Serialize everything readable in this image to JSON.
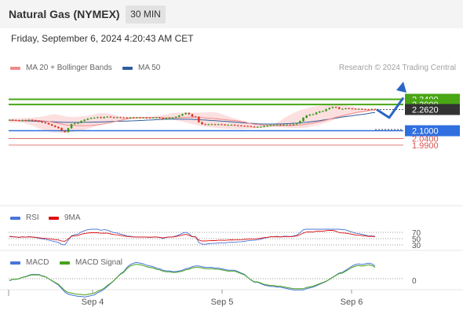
{
  "header": {
    "title": "Natural Gas (NYMEX)",
    "timeframe": "30 MIN"
  },
  "datetime": "Friday, September 6, 2024 4:20:43 AM CET",
  "legend": {
    "ma20_label": "MA 20 + Bollinger Bands",
    "ma50_label": "MA 50",
    "ma20_color": "#f08a8a",
    "ma50_color": "#2f5d9e"
  },
  "research": "Research © 2024 Trading Central",
  "levels": {
    "r2": "2.3400",
    "r1": "2.3000",
    "last": "2.2620",
    "pivot": "2.1000",
    "s1": "2.0400",
    "s2": "1.9900",
    "resistance_color": "#4aa615",
    "pivot_color": "#2f6fe0",
    "support_color": "#d9534f",
    "last_color": "#333333"
  },
  "rsi_panel": {
    "rsi_label": "RSI",
    "ma9_label": "9MA",
    "rsi_color": "#4a74d9",
    "ma9_color": "#e01010",
    "ticks": [
      "70",
      "50",
      "30"
    ]
  },
  "macd_panel": {
    "macd_label": "MACD",
    "signal_label": "MACD Signal",
    "macd_color": "#4a74d9",
    "signal_color": "#44a21a",
    "tick": "0"
  },
  "xaxis": {
    "labels": [
      "Sep 4",
      "Sep 5",
      "Sep 6"
    ]
  },
  "chart_data": {
    "type": "candlestick",
    "title": "Natural Gas (NYMEX)",
    "timeframe": "30 MIN",
    "x_labels": [
      "Sep 4",
      "Sep 5",
      "Sep 6"
    ],
    "ylim": [
      1.97,
      2.36
    ],
    "close": [
      2.183,
      2.181,
      2.179,
      2.175,
      2.181,
      2.178,
      2.183,
      2.18,
      2.176,
      2.169,
      2.163,
      2.158,
      2.149,
      2.139,
      2.129,
      2.12,
      2.099,
      2.09,
      2.119,
      2.15,
      2.156,
      2.16,
      2.175,
      2.184,
      2.192,
      2.197,
      2.199,
      2.203,
      2.197,
      2.205,
      2.207,
      2.203,
      2.199,
      2.203,
      2.201,
      2.2,
      2.197,
      2.201,
      2.199,
      2.201,
      2.2,
      2.2,
      2.199,
      2.198,
      2.2,
      2.201,
      2.197,
      2.188,
      2.196,
      2.2,
      2.2,
      2.206,
      2.216,
      2.227,
      2.236,
      2.226,
      2.208,
      2.206,
      2.165,
      2.15,
      2.147,
      2.149,
      2.149,
      2.147,
      2.149,
      2.147,
      2.143,
      2.144,
      2.145,
      2.141,
      2.14,
      2.137,
      2.136,
      2.134,
      2.131,
      2.127,
      2.129,
      2.13,
      2.135,
      2.138,
      2.143,
      2.143,
      2.145,
      2.141,
      2.146,
      2.146,
      2.144,
      2.149,
      2.156,
      2.174,
      2.199,
      2.216,
      2.223,
      2.226,
      2.239,
      2.247,
      2.25,
      2.264,
      2.274,
      2.281,
      2.278,
      2.267,
      2.267,
      2.271,
      2.269,
      2.267,
      2.265,
      2.266,
      2.264,
      2.263,
      2.262,
      2.266,
      2.262
    ],
    "ma20": [
      2.177,
      2.178,
      2.178,
      2.178,
      2.179,
      2.179,
      2.18,
      2.18,
      2.179,
      2.178,
      2.176,
      2.174,
      2.17,
      2.166,
      2.162,
      2.157,
      2.151,
      2.145,
      2.142,
      2.141,
      2.14,
      2.139,
      2.139,
      2.139,
      2.14,
      2.141,
      2.143,
      2.146,
      2.149,
      2.153,
      2.158,
      2.163,
      2.168,
      2.174,
      2.18,
      2.184,
      2.19,
      2.195,
      2.198,
      2.2,
      2.2,
      2.2,
      2.2,
      2.2,
      2.2,
      2.2,
      2.2,
      2.199,
      2.199,
      2.199,
      2.199,
      2.199,
      2.2,
      2.2,
      2.202,
      2.203,
      2.204,
      2.204,
      2.203,
      2.2,
      2.198,
      2.196,
      2.194,
      2.192,
      2.19,
      2.187,
      2.185,
      2.182,
      2.18,
      2.178,
      2.174,
      2.17,
      2.166,
      2.16,
      2.155,
      2.15,
      2.148,
      2.145,
      2.142,
      2.141,
      2.14,
      2.14,
      2.14,
      2.14,
      2.14,
      2.14,
      2.14,
      2.141,
      2.142,
      2.144,
      2.147,
      2.151,
      2.155,
      2.159,
      2.164,
      2.169,
      2.175,
      2.181,
      2.188,
      2.195,
      2.202,
      2.209,
      2.214,
      2.22,
      2.226,
      2.232,
      2.238,
      2.242,
      2.245,
      2.249,
      2.254,
      2.257,
      2.257
    ],
    "ma50": [
      2.18,
      2.179,
      2.179,
      2.178,
      2.177,
      2.176,
      2.175,
      2.174,
      2.173,
      2.172,
      2.172,
      2.171,
      2.17,
      2.169,
      2.168,
      2.166,
      2.165,
      2.164,
      2.164,
      2.164,
      2.164,
      2.164,
      2.164,
      2.165,
      2.165,
      2.165,
      2.166,
      2.166,
      2.167,
      2.168,
      2.169,
      2.17,
      2.171,
      2.172,
      2.173,
      2.174,
      2.174,
      2.175,
      2.176,
      2.177,
      2.178,
      2.179,
      2.181,
      2.182,
      2.183,
      2.185,
      2.186,
      2.187,
      2.188,
      2.188,
      2.189,
      2.189,
      2.189,
      2.188,
      2.188,
      2.188,
      2.187,
      2.186,
      2.185,
      2.183,
      2.182,
      2.18,
      2.178,
      2.177,
      2.175,
      2.173,
      2.172,
      2.17,
      2.168,
      2.166,
      2.164,
      2.162,
      2.16,
      2.158,
      2.157,
      2.155,
      2.153,
      2.152,
      2.151,
      2.151,
      2.151,
      2.151,
      2.152,
      2.152,
      2.153,
      2.154,
      2.155,
      2.157,
      2.158,
      2.16,
      2.163,
      2.165,
      2.168,
      2.171,
      2.174,
      2.177,
      2.181,
      2.185,
      2.189,
      2.193,
      2.197,
      2.201,
      2.205,
      2.208,
      2.211,
      2.214,
      2.218,
      2.221,
      2.225,
      2.228,
      2.232,
      2.236,
      2.239
    ],
    "bb_upper": [
      2.192,
      2.193,
      2.194,
      2.195,
      2.197,
      2.199,
      2.2,
      2.201,
      2.203,
      2.205,
      2.208,
      2.213,
      2.22,
      2.225,
      2.226,
      2.222,
      2.216,
      2.211,
      2.207,
      2.205,
      2.205,
      2.207,
      2.21,
      2.212,
      2.214,
      2.219,
      2.226,
      2.232,
      2.234,
      2.234,
      2.233,
      2.228,
      2.222,
      2.215,
      2.209,
      2.206,
      2.205,
      2.205,
      2.205,
      2.205,
      2.205,
      2.205,
      2.205,
      2.206,
      2.207,
      2.212,
      2.217,
      2.221,
      2.225,
      2.23,
      2.235,
      2.238,
      2.24,
      2.239,
      2.238,
      2.238,
      2.238,
      2.238,
      2.238,
      2.238,
      2.239,
      2.241,
      2.241,
      2.239,
      2.235,
      2.228,
      2.22,
      2.211,
      2.202,
      2.194,
      2.187,
      2.179,
      2.172,
      2.165,
      2.159,
      2.155,
      2.152,
      2.15,
      2.149,
      2.149,
      2.15,
      2.153,
      2.162,
      2.177,
      2.194,
      2.21,
      2.223,
      2.235,
      2.246,
      2.256,
      2.264,
      2.271,
      2.278,
      2.283,
      2.287,
      2.29,
      2.292,
      2.293,
      2.295,
      2.296,
      2.297,
      2.296,
      2.294,
      2.292,
      2.289,
      2.285,
      2.281,
      2.277,
      2.274,
      2.27,
      2.267,
      2.266,
      2.265
    ],
    "bb_lower": [
      2.163,
      2.163,
      2.163,
      2.163,
      2.16,
      2.155,
      2.147,
      2.139,
      2.128,
      2.118,
      2.109,
      2.101,
      2.095,
      2.09,
      2.087,
      2.085,
      2.085,
      2.085,
      2.087,
      2.09,
      2.093,
      2.097,
      2.102,
      2.108,
      2.115,
      2.122,
      2.13,
      2.138,
      2.146,
      2.154,
      2.16,
      2.166,
      2.172,
      2.177,
      2.181,
      2.184,
      2.187,
      2.189,
      2.19,
      2.192,
      2.193,
      2.193,
      2.193,
      2.194,
      2.194,
      2.194,
      2.194,
      2.193,
      2.191,
      2.187,
      2.183,
      2.179,
      2.174,
      2.169,
      2.163,
      2.157,
      2.151,
      2.145,
      2.14,
      2.135,
      2.131,
      2.128,
      2.125,
      2.122,
      2.12,
      2.118,
      2.116,
      2.115,
      2.114,
      2.113,
      2.113,
      2.113,
      2.114,
      2.115,
      2.116,
      2.118,
      2.119,
      2.121,
      2.123,
      2.125,
      2.126,
      2.127,
      2.127,
      2.126,
      2.125,
      2.123,
      2.121,
      2.12,
      2.12,
      2.121,
      2.123,
      2.126,
      2.13,
      2.135,
      2.141,
      2.148,
      2.155,
      2.162,
      2.17,
      2.179,
      2.188,
      2.197,
      2.205,
      2.212,
      2.218,
      2.224,
      2.23,
      2.235,
      2.24,
      2.244,
      2.248,
      2.25,
      2.251
    ],
    "forecast": [
      {
        "x": "Sep 6",
        "y": 2.262
      },
      {
        "y": 2.2
      },
      {
        "y": 2.34
      }
    ],
    "key_levels": {
      "resistance": [
        2.34,
        2.3
      ],
      "last": 2.262,
      "pivot": 2.1,
      "support": [
        2.04,
        1.99
      ]
    },
    "rsi": {
      "ticks": [
        70,
        50,
        30
      ],
      "ylim": [
        20,
        80
      ]
    },
    "macd": {
      "ticks": [
        0
      ]
    }
  }
}
